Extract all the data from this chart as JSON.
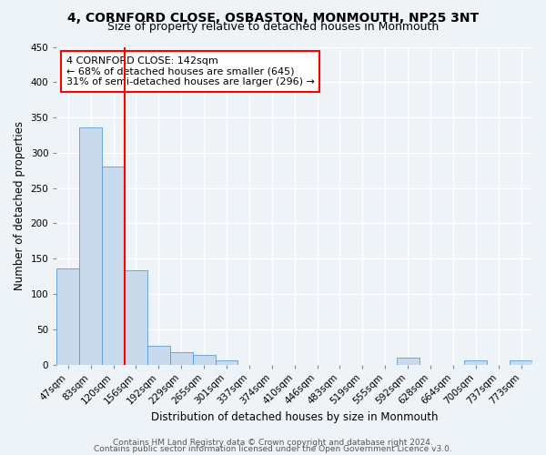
{
  "title": "4, CORNFORD CLOSE, OSBASTON, MONMOUTH, NP25 3NT",
  "subtitle": "Size of property relative to detached houses in Monmouth",
  "xlabel": "Distribution of detached houses by size in Monmouth",
  "ylabel": "Number of detached properties",
  "bin_labels": [
    "47sqm",
    "83sqm",
    "120sqm",
    "156sqm",
    "192sqm",
    "229sqm",
    "265sqm",
    "301sqm",
    "337sqm",
    "374sqm",
    "410sqm",
    "446sqm",
    "483sqm",
    "519sqm",
    "555sqm",
    "592sqm",
    "628sqm",
    "664sqm",
    "700sqm",
    "737sqm",
    "773sqm"
  ],
  "bar_heights": [
    136,
    336,
    281,
    134,
    27,
    18,
    13,
    6,
    0,
    0,
    0,
    0,
    0,
    0,
    0,
    10,
    0,
    0,
    6,
    0,
    6
  ],
  "bar_color": "#c8daeb",
  "bar_edge_color": "#5b9bd5",
  "vline_x_idx": 3,
  "vline_color": "red",
  "annotation_text": "4 CORNFORD CLOSE: 142sqm\n← 68% of detached houses are smaller (645)\n31% of semi-detached houses are larger (296) →",
  "annotation_box_color": "white",
  "annotation_box_edge_color": "red",
  "ylim": [
    0,
    450
  ],
  "yticks": [
    0,
    50,
    100,
    150,
    200,
    250,
    300,
    350,
    400,
    450
  ],
  "footer_line1": "Contains HM Land Registry data © Crown copyright and database right 2024.",
  "footer_line2": "Contains public sector information licensed under the Open Government Licence v3.0.",
  "background_color": "#eef3f8",
  "grid_color": "white",
  "title_fontsize": 10,
  "subtitle_fontsize": 9,
  "axis_label_fontsize": 8.5,
  "tick_fontsize": 7.5,
  "annotation_fontsize": 8,
  "footer_fontsize": 6.5
}
